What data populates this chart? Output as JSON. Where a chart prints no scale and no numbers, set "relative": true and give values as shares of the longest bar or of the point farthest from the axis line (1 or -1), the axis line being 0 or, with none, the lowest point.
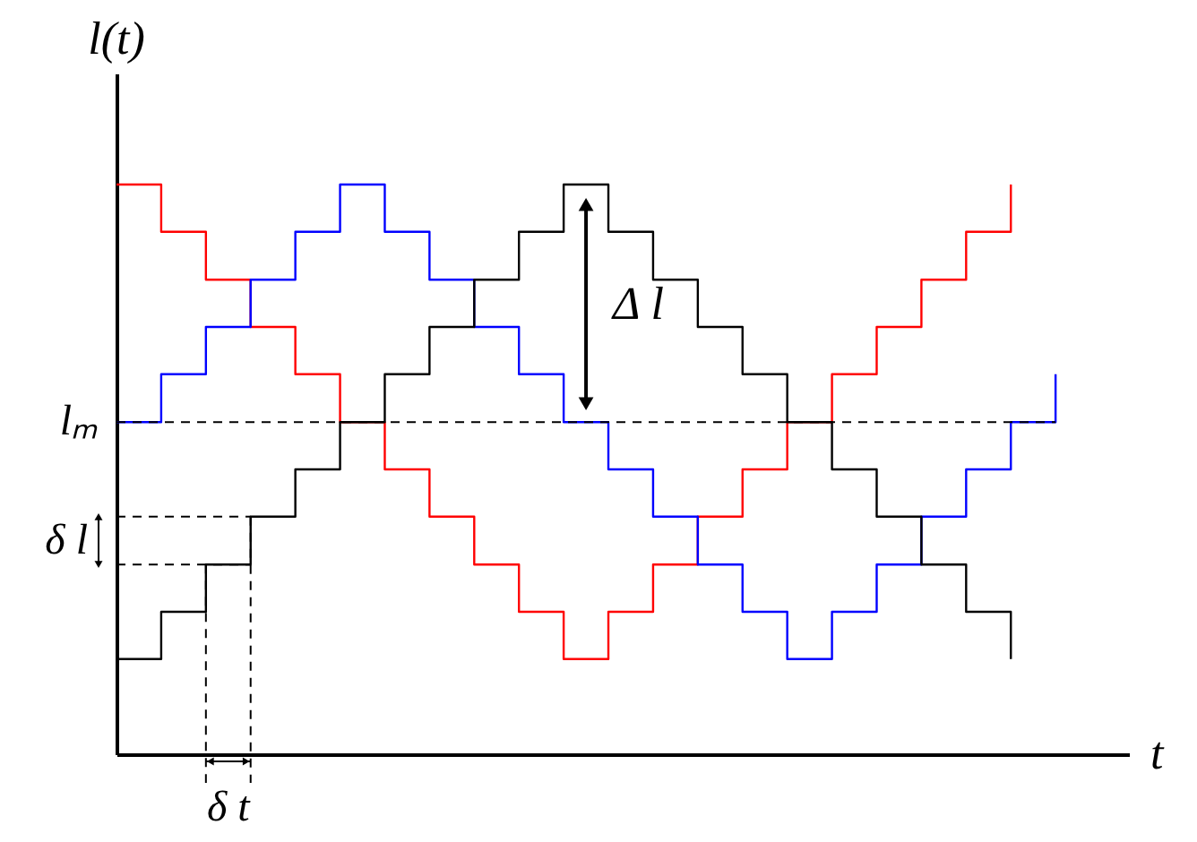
{
  "chart_data": {
    "type": "step",
    "relative": true,
    "xlabel": "t",
    "ylabel": "l(t)",
    "tick_labels": false,
    "marker": "none",
    "line_style": "solid",
    "categories": [
      null,
      null,
      null,
      null,
      null,
      null,
      null,
      null,
      null,
      null,
      null,
      null,
      null,
      null,
      null,
      null,
      null,
      null,
      null,
      null,
      null,
      null
    ],
    "series": [
      {
        "color": "#ff0000",
        "values": [
          1,
          0.917,
          0.833,
          0.75,
          0.667,
          0.583,
          0.5,
          0.417,
          0.333,
          0.25,
          0.167,
          0.25,
          0.333,
          0.417,
          0.5,
          0.583,
          0.667,
          0.75,
          0.833,
          0.917,
          1,
          null
        ]
      },
      {
        "color": "#0000ff",
        "values": [
          0.583,
          0.667,
          0.75,
          0.833,
          0.917,
          1,
          0.917,
          0.833,
          0.75,
          0.667,
          0.583,
          0.5,
          0.417,
          0.333,
          0.25,
          0.167,
          0.25,
          0.333,
          0.417,
          0.5,
          0.583,
          0.667
        ]
      },
      {
        "color": "#000000",
        "values": [
          0.167,
          0.25,
          0.333,
          0.417,
          0.5,
          0.583,
          0.667,
          0.75,
          0.833,
          0.917,
          1,
          0.917,
          0.833,
          0.75,
          0.667,
          0.583,
          0.5,
          0.417,
          0.333,
          0.25,
          0.167,
          null
        ]
      }
    ],
    "ref_lines": [
      {
        "axis": "y",
        "value": 0.583,
        "label": "lₘ",
        "line_style": "dashed",
        "color": "#000000"
      }
    ],
    "annotations": [
      "Δ l",
      "δ l",
      "δ t"
    ]
  }
}
